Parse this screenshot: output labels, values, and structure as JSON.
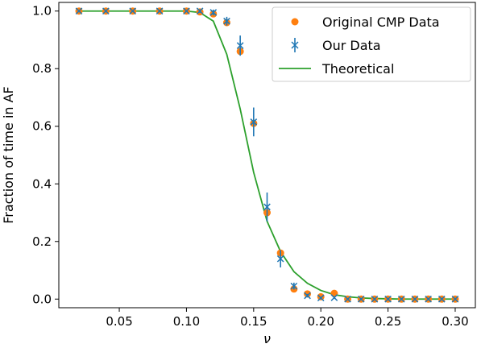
{
  "chart_data": {
    "type": "scatter",
    "title": "",
    "xlabel": "ν",
    "ylabel": "Fraction of time in AF",
    "xlim": [
      0.005,
      0.315
    ],
    "ylim": [
      -0.03,
      1.03
    ],
    "xticks": [
      0.05,
      0.1,
      0.15,
      0.2,
      0.25,
      0.3
    ],
    "xtick_labels": [
      "0.05",
      "0.10",
      "0.15",
      "0.20",
      "0.25",
      "0.30"
    ],
    "yticks": [
      0.0,
      0.2,
      0.4,
      0.6,
      0.8,
      1.0
    ],
    "ytick_labels": [
      "0.0",
      "0.2",
      "0.4",
      "0.6",
      "0.8",
      "1.0"
    ],
    "grid": false,
    "legend_position": "top-right",
    "colors": {
      "original": "#ff7f0e",
      "ours": "#1f77b4",
      "theoretical": "#2ca02c"
    },
    "series": [
      {
        "name": "Original CMP Data",
        "marker": "circle",
        "x": [
          0.02,
          0.04,
          0.06,
          0.08,
          0.1,
          0.11,
          0.12,
          0.13,
          0.14,
          0.15,
          0.16,
          0.17,
          0.18,
          0.19,
          0.2,
          0.21,
          0.22,
          0.23,
          0.24,
          0.25,
          0.26,
          0.27,
          0.28,
          0.29,
          0.3
        ],
        "y": [
          1.0,
          1.0,
          1.0,
          1.0,
          1.0,
          0.997,
          0.99,
          0.96,
          0.86,
          0.61,
          0.3,
          0.16,
          0.035,
          0.018,
          0.008,
          0.02,
          0.0,
          0.0,
          0.0,
          0.0,
          0.0,
          0.0,
          0.0,
          0.0,
          0.0
        ]
      },
      {
        "name": "Our Data",
        "marker": "x-errorbar",
        "x": [
          0.02,
          0.04,
          0.06,
          0.08,
          0.1,
          0.11,
          0.12,
          0.13,
          0.14,
          0.15,
          0.16,
          0.17,
          0.18,
          0.19,
          0.2,
          0.21,
          0.22,
          0.23,
          0.24,
          0.25,
          0.26,
          0.27,
          0.28,
          0.29,
          0.3
        ],
        "y": [
          1.0,
          1.0,
          1.0,
          1.0,
          1.0,
          1.0,
          0.995,
          0.965,
          0.88,
          0.615,
          0.32,
          0.14,
          0.045,
          0.012,
          0.004,
          0.005,
          0.0,
          0.0,
          0.0,
          0.0,
          0.0,
          0.0,
          0.0,
          0.0,
          0.0
        ],
        "yerr": [
          0.0,
          0.0,
          0.0,
          0.0,
          0.0,
          0.006,
          0.01,
          0.015,
          0.035,
          0.05,
          0.05,
          0.03,
          0.012,
          0.006,
          0.004,
          0.004,
          0.0,
          0.0,
          0.0,
          0.0,
          0.0,
          0.0,
          0.0,
          0.0,
          0.0
        ]
      },
      {
        "name": "Theoretical",
        "marker": "line",
        "x": [
          0.02,
          0.04,
          0.06,
          0.08,
          0.1,
          0.11,
          0.12,
          0.13,
          0.14,
          0.15,
          0.16,
          0.17,
          0.18,
          0.19,
          0.2,
          0.21,
          0.22,
          0.23,
          0.24,
          0.25,
          0.26,
          0.27,
          0.28,
          0.29,
          0.3
        ],
        "y": [
          1.0,
          1.0,
          1.0,
          1.0,
          1.0,
          0.995,
          0.965,
          0.85,
          0.66,
          0.44,
          0.27,
          0.165,
          0.095,
          0.055,
          0.03,
          0.015,
          0.008,
          0.004,
          0.002,
          0.001,
          0.0,
          0.0,
          0.0,
          0.0,
          0.0
        ]
      }
    ]
  }
}
